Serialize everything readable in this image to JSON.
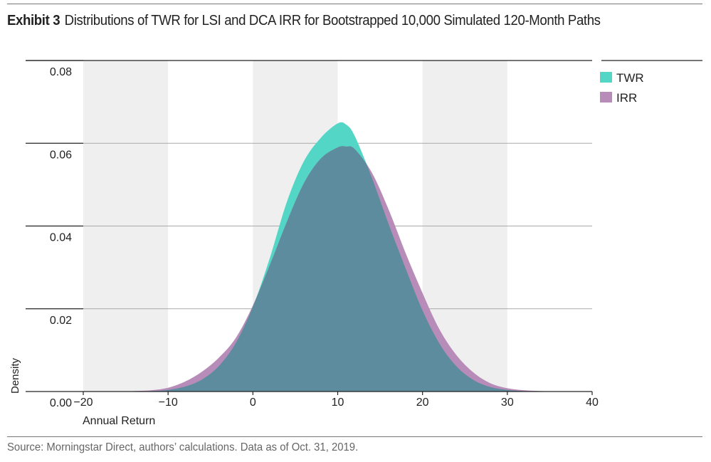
{
  "header": {
    "exhibit": "Exhibit 3",
    "title": "Distributions of TWR for LSI and DCA IRR for Bootstrapped 10,000 Simulated 120-Month Paths"
  },
  "footer": {
    "source": "Source: Morningstar Direct, authors’ calculations. Data as of Oct. 31, 2019."
  },
  "colors": {
    "twr": "#54d6c6",
    "irr": "#b88cb8",
    "overlap": "#5e8c9f",
    "band": "#efefef",
    "grid": "#a9a9a9"
  },
  "chart_data": {
    "type": "area",
    "title": "Distributions of TWR for LSI and DCA IRR for Bootstrapped 10,000 Simulated 120-Month Paths",
    "xlabel": "Annual Return",
    "ylabel": "Density",
    "xlim": [
      -20,
      40
    ],
    "ylim": [
      0,
      0.08
    ],
    "x_ticks": [
      "−20",
      "−10",
      "0",
      "10",
      "20",
      "30",
      "40"
    ],
    "y_ticks": [
      "0.08",
      "0.06",
      "0.04",
      "0.02",
      "0.00"
    ],
    "grid": true,
    "legend_position": "top-right",
    "shaded_bands": [
      [
        -20,
        -10
      ],
      [
        0,
        10
      ],
      [
        20,
        30
      ]
    ],
    "x": [
      -14,
      -12,
      -10,
      -8,
      -6,
      -4,
      -2,
      0,
      2,
      4,
      6,
      8,
      10,
      11,
      12,
      14,
      16,
      18,
      20,
      22,
      24,
      26,
      28,
      30,
      32,
      34,
      36,
      38
    ],
    "series": [
      {
        "name": "TWR",
        "color": "#54d6c6",
        "values": [
          0,
          0.0001,
          0.0004,
          0.0012,
          0.0029,
          0.0062,
          0.0118,
          0.0205,
          0.0323,
          0.0458,
          0.0556,
          0.0613,
          0.0648,
          0.0645,
          0.0618,
          0.0518,
          0.0405,
          0.0298,
          0.0196,
          0.0116,
          0.0061,
          0.0028,
          0.0011,
          0.0004,
          0.0001,
          0,
          0,
          0
        ]
      },
      {
        "name": "IRR",
        "color": "#b88cb8",
        "values": [
          0.0001,
          0.0003,
          0.0009,
          0.0024,
          0.0048,
          0.0082,
          0.013,
          0.0208,
          0.0306,
          0.041,
          0.0503,
          0.0563,
          0.059,
          0.0592,
          0.0586,
          0.053,
          0.044,
          0.0335,
          0.0238,
          0.015,
          0.0088,
          0.0046,
          0.002,
          0.0008,
          0.0003,
          0.0001,
          0,
          0
        ]
      }
    ]
  }
}
